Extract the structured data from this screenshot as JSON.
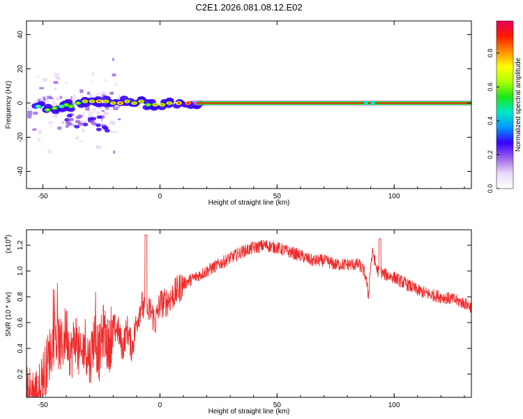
{
  "figure": {
    "title": "C2E1.2026.081.08.12.E02"
  },
  "chart_data": [
    {
      "type": "heatmap",
      "title": "C2E1.2026.081.08.12.E02",
      "xlabel": "Height of straight line (km)",
      "ylabel": "Frequency (Hz)",
      "xlim": [
        -57,
        133
      ],
      "ylim": [
        -50,
        48
      ],
      "x_ticks": [
        -50,
        0,
        50,
        100
      ],
      "y_ticks": [
        -40,
        -20,
        0,
        20,
        40
      ],
      "colorbar": {
        "label": "Normalized spectral amplitude",
        "range": [
          0,
          0.99
        ],
        "ticks": [
          0.0,
          0.2,
          0.4,
          0.6,
          0.8
        ],
        "colors": [
          "#ffffff",
          "#e9d8f6",
          "#9c63e8",
          "#3800ff",
          "#0096ff",
          "#00e8c8",
          "#19e619",
          "#aaff00",
          "#ffff00",
          "#ff8c00",
          "#ff1a00",
          "#e6005c"
        ]
      },
      "ridge": [
        {
          "x": -52,
          "y": -2,
          "amp": 0.45
        },
        {
          "x": -48,
          "y": -4,
          "amp": 0.5
        },
        {
          "x": -45,
          "y": -3,
          "amp": 0.5
        },
        {
          "x": -42,
          "y": -2,
          "amp": 0.45
        },
        {
          "x": -40,
          "y": -1,
          "amp": 0.5
        },
        {
          "x": -38,
          "y": -2,
          "amp": 0.5
        },
        {
          "x": -35,
          "y": 0,
          "amp": 0.55
        },
        {
          "x": -32,
          "y": 1,
          "amp": 0.6
        },
        {
          "x": -29,
          "y": 1,
          "amp": 0.65
        },
        {
          "x": -26,
          "y": 1,
          "amp": 0.7
        },
        {
          "x": -23,
          "y": 1,
          "amp": 0.6
        },
        {
          "x": -20,
          "y": 0,
          "amp": 0.65
        },
        {
          "x": -17,
          "y": 0,
          "amp": 0.7
        },
        {
          "x": -14,
          "y": 1,
          "amp": 0.65
        },
        {
          "x": -11,
          "y": 0,
          "amp": 0.6
        },
        {
          "x": -8,
          "y": 1,
          "amp": 0.6
        },
        {
          "x": -5,
          "y": -1,
          "amp": 0.55
        },
        {
          "x": -2,
          "y": -1,
          "amp": 0.6
        },
        {
          "x": 1,
          "y": -1,
          "amp": 0.6
        },
        {
          "x": 4,
          "y": 0,
          "amp": 0.65
        },
        {
          "x": 8,
          "y": 0,
          "amp": 0.75
        },
        {
          "x": 12,
          "y": 0,
          "amp": 0.8
        },
        {
          "x": 16,
          "y": 0,
          "amp": 0.85
        }
      ],
      "constant_line": {
        "y": 0,
        "from_x": 16,
        "to_x": 133,
        "amp": 0.95
      }
    },
    {
      "type": "line",
      "xlabel": "Height of straight line (km)",
      "ylabel": "SNR (10 * v/v)",
      "scale_label": "(x10",
      "scale_exponent": "4",
      "xlim": [
        -57,
        133
      ],
      "ylim": [
        0.02,
        1.32
      ],
      "x_ticks": [
        -50,
        0,
        50,
        100
      ],
      "y_ticks": [
        0.2,
        0.4,
        0.6,
        0.8,
        1.0,
        1.2
      ],
      "y_tick_labels": [
        "0.2",
        "0.4",
        "0.6",
        "0.8",
        "1.0",
        "1.2"
      ],
      "color": "#ee2b2b",
      "series": [
        {
          "x": [
            -57,
            -52,
            -48,
            -45,
            -42,
            -40,
            -38,
            -36,
            -34,
            -32,
            -30,
            -28,
            -26,
            -24,
            -22,
            -20,
            -18,
            -16,
            -14,
            -12,
            -10,
            -8,
            -6,
            -4,
            -2,
            0,
            2,
            5,
            10,
            15,
            20,
            25,
            30,
            35,
            40,
            45,
            50,
            55,
            60,
            65,
            70,
            75,
            80,
            85,
            87,
            88,
            89,
            90,
            91,
            92,
            93,
            95,
            100,
            105,
            110,
            115,
            120,
            125,
            130,
            133
          ],
          "y": [
            0.05,
            0.05,
            0.3,
            0.5,
            0.4,
            0.55,
            0.35,
            0.5,
            0.3,
            0.45,
            0.3,
            0.5,
            0.35,
            0.55,
            0.4,
            0.55,
            0.55,
            0.4,
            0.55,
            0.4,
            0.6,
            0.75,
            0.65,
            0.7,
            0.6,
            0.75,
            0.75,
            0.8,
            0.9,
            0.95,
            1.0,
            1.05,
            1.1,
            1.15,
            1.18,
            1.2,
            1.18,
            1.15,
            1.12,
            1.08,
            1.08,
            1.05,
            1.05,
            1.05,
            1.0,
            0.95,
            0.8,
            1.05,
            1.15,
            1.05,
            1.0,
            0.98,
            0.95,
            0.9,
            0.85,
            0.82,
            0.8,
            0.78,
            0.75,
            0.72
          ]
        }
      ]
    }
  ]
}
